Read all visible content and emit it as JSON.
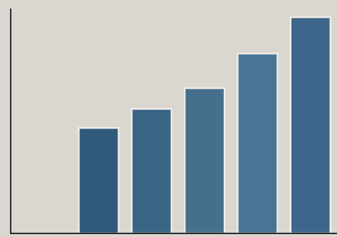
{
  "chart_data": {
    "type": "bar",
    "categories": [
      "",
      "",
      "",
      "",
      "",
      ""
    ],
    "values": [
      0,
      30.5,
      36,
      42,
      52,
      62.5
    ],
    "ylim": [
      0,
      65
    ],
    "grid": false,
    "legend": "none",
    "title": "",
    "xlabel": "",
    "ylabel": "",
    "colors": {
      "background": "#dad6d0",
      "axis": "#2b2b2b",
      "bar_outline": "#efece7",
      "bars": [
        "#2f4f68",
        "#2f5a7a",
        "#3b6584",
        "#466f8d",
        "#4a7394",
        "#3c678a"
      ]
    }
  }
}
